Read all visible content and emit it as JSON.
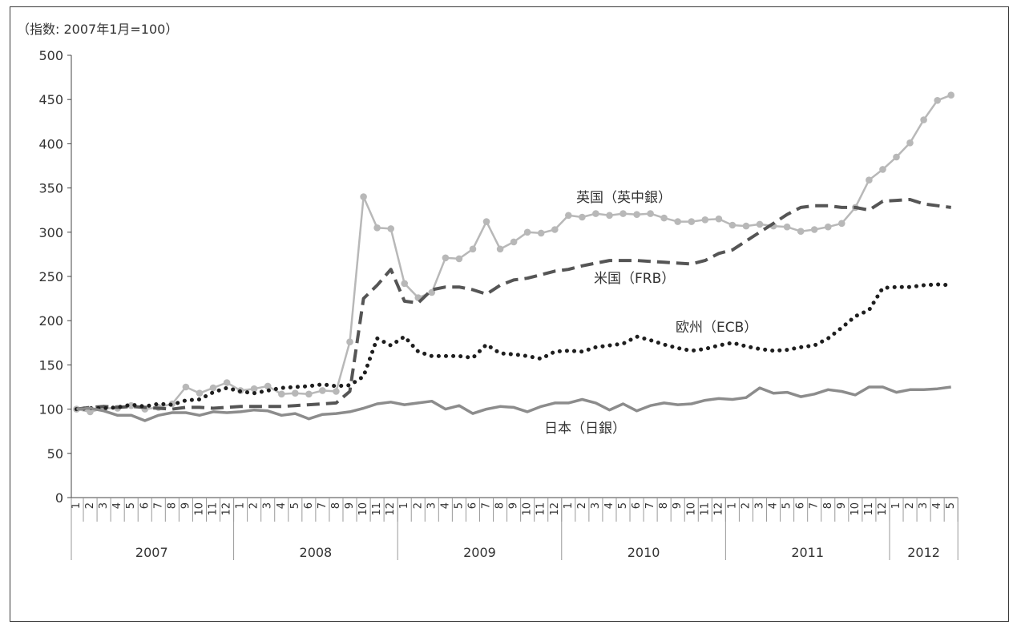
{
  "chart_data": {
    "type": "line",
    "title": "",
    "ylabel": "（指数: 2007年1月=100）",
    "xlabel": "",
    "ylim": [
      0,
      500
    ],
    "yticks": [
      0,
      50,
      100,
      150,
      200,
      250,
      300,
      350,
      400,
      450,
      500
    ],
    "grid": false,
    "legend": "none (series labeled inline)",
    "years": [
      {
        "label": "2007",
        "months": 12
      },
      {
        "label": "2008",
        "months": 12
      },
      {
        "label": "2009",
        "months": 12
      },
      {
        "label": "2010",
        "months": 12
      },
      {
        "label": "2011",
        "months": 12
      },
      {
        "label": "2012",
        "months": 5
      }
    ],
    "series": [
      {
        "name": "英国（英中銀）",
        "color": "#b8b8b8",
        "style": "solid-markers",
        "values": [
          100,
          97,
          101,
          101,
          104,
          100,
          102,
          106,
          125,
          118,
          124,
          130,
          121,
          123,
          126,
          117,
          118,
          117,
          121,
          120,
          176,
          340,
          305,
          304,
          242,
          226,
          232,
          271,
          270,
          281,
          312,
          281,
          289,
          300,
          299,
          303,
          319,
          317,
          321,
          319,
          321,
          320,
          321,
          316,
          312,
          312,
          314,
          315,
          308,
          307,
          309,
          307,
          306,
          301,
          303,
          306,
          310,
          328,
          359,
          371,
          385,
          401,
          427,
          449,
          455
        ]
      },
      {
        "name": "米国（FRB）",
        "color": "#555555",
        "style": "dashed",
        "values": [
          100,
          102,
          103,
          102,
          103,
          102,
          101,
          100,
          102,
          102,
          101,
          102,
          103,
          103,
          103,
          103,
          104,
          105,
          106,
          107,
          120,
          225,
          240,
          258,
          222,
          220,
          235,
          238,
          238,
          235,
          230,
          240,
          246,
          248,
          252,
          256,
          258,
          262,
          265,
          268,
          268,
          268,
          267,
          266,
          265,
          264,
          268,
          276,
          280,
          290,
          300,
          310,
          320,
          328,
          330,
          330,
          328,
          328,
          325,
          335,
          336,
          337,
          332,
          330,
          328
        ]
      },
      {
        "name": "欧州（ECB）",
        "color": "#1e1e1e",
        "style": "dotted",
        "values": [
          100,
          101,
          101,
          102,
          105,
          103,
          106,
          105,
          110,
          111,
          119,
          124,
          120,
          118,
          121,
          124,
          125,
          126,
          128,
          126,
          127,
          137,
          180,
          172,
          182,
          165,
          160,
          160,
          160,
          158,
          173,
          163,
          162,
          160,
          157,
          165,
          166,
          165,
          170,
          172,
          174,
          182,
          178,
          173,
          169,
          166,
          168,
          172,
          175,
          171,
          168,
          166,
          167,
          170,
          172,
          180,
          192,
          205,
          212,
          237,
          238,
          238,
          240,
          241,
          240
        ]
      },
      {
        "name": "日本（日銀）",
        "color": "#8c8c8c",
        "style": "solid",
        "values": [
          100,
          101,
          98,
          93,
          93,
          87,
          93,
          96,
          96,
          93,
          97,
          96,
          97,
          99,
          98,
          93,
          95,
          89,
          94,
          95,
          97,
          101,
          106,
          108,
          105,
          107,
          109,
          100,
          104,
          95,
          100,
          103,
          102,
          97,
          103,
          107,
          107,
          111,
          107,
          99,
          106,
          98,
          104,
          107,
          105,
          106,
          110,
          112,
          111,
          113,
          124,
          118,
          119,
          114,
          117,
          122,
          120,
          116,
          125,
          125,
          119,
          122,
          122,
          123,
          125
        ]
      }
    ],
    "annotations": [
      "英国（英中銀）",
      "米国（FRB）",
      "欧州（ECB）",
      "日本（日銀）"
    ]
  }
}
